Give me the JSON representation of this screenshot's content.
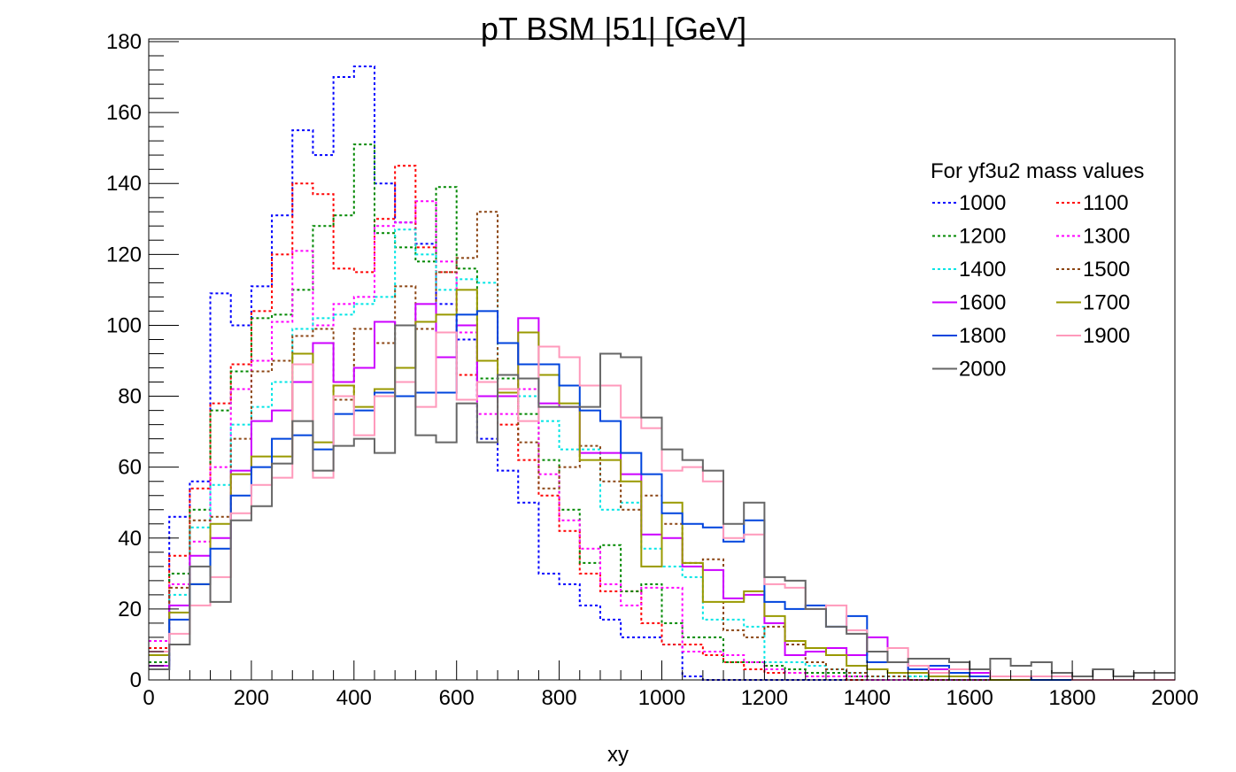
{
  "chart_data": {
    "type": "step-histogram",
    "title": "pT BSM |51| [GeV]",
    "xlabel": "xy",
    "ylabel": "",
    "xlim": [
      0,
      2000
    ],
    "ylim": [
      0,
      180
    ],
    "x_ticks": [
      "0",
      "200",
      "400",
      "600",
      "800",
      "1000",
      "1200",
      "1400",
      "1600",
      "1800",
      "2000"
    ],
    "y_ticks": [
      "0",
      "20",
      "40",
      "60",
      "80",
      "100",
      "120",
      "140",
      "160",
      "180"
    ],
    "bin_width": 40,
    "legend_title": "For yf3u2 mass values",
    "legend_placement": "right",
    "series": [
      {
        "name": "1000",
        "color": "#0000ff",
        "dash": "dotted",
        "values": [
          5,
          46,
          56,
          109,
          100,
          111,
          131,
          155,
          148,
          170,
          173,
          140,
          129,
          123,
          106,
          96,
          68,
          59,
          50,
          30,
          27,
          21,
          17,
          12,
          12,
          10,
          1,
          0,
          0,
          0,
          0,
          0,
          0,
          0,
          0,
          0,
          0,
          0,
          0,
          0,
          0,
          0,
          0,
          0,
          0,
          0,
          0,
          0,
          0,
          0
        ]
      },
      {
        "name": "1100",
        "color": "#ff0000",
        "dash": "dotted",
        "values": [
          9,
          35,
          54,
          78,
          89,
          104,
          120,
          140,
          137,
          116,
          115,
          130,
          145,
          122,
          115,
          86,
          80,
          72,
          62,
          52,
          42,
          30,
          25,
          25,
          16,
          10,
          10,
          7,
          5,
          3,
          2,
          2,
          1,
          1,
          0,
          0,
          0,
          0,
          0,
          0,
          0,
          0,
          0,
          0,
          0,
          0,
          0,
          0,
          0,
          0
        ]
      },
      {
        "name": "1200",
        "color": "#008800",
        "dash": "dotted",
        "values": [
          5,
          30,
          48,
          76,
          87,
          102,
          103,
          110,
          128,
          131,
          151,
          126,
          122,
          118,
          139,
          116,
          85,
          85,
          75,
          62,
          48,
          33,
          38,
          25,
          27,
          16,
          12,
          12,
          5,
          5,
          4,
          3,
          2,
          2,
          1,
          1,
          1,
          1,
          0,
          0,
          0,
          0,
          0,
          0,
          0,
          0,
          0,
          0,
          0,
          0
        ]
      },
      {
        "name": "1300",
        "color": "#ff00ff",
        "dash": "dotted",
        "values": [
          11,
          27,
          39,
          60,
          82,
          90,
          101,
          121,
          100,
          106,
          108,
          128,
          129,
          135,
          118,
          98,
          75,
          75,
          82,
          58,
          45,
          37,
          27,
          21,
          26,
          26,
          8,
          8,
          7,
          5,
          3,
          2,
          1,
          1,
          1,
          0,
          0,
          0,
          0,
          0,
          0,
          0,
          0,
          0,
          0,
          0,
          0,
          0,
          0,
          0
        ]
      },
      {
        "name": "1400",
        "color": "#00e5e5",
        "dash": "dotted",
        "values": [
          4,
          24,
          43,
          55,
          72,
          77,
          84,
          99,
          102,
          103,
          106,
          108,
          127,
          120,
          110,
          113,
          112,
          80,
          80,
          73,
          65,
          65,
          48,
          50,
          37,
          32,
          29,
          17,
          17,
          15,
          5,
          5,
          4,
          3,
          2,
          1,
          1,
          1,
          1,
          0,
          0,
          0,
          0,
          0,
          0,
          0,
          0,
          0,
          0,
          0
        ]
      },
      {
        "name": "1500",
        "color": "#8b4513",
        "dash": "dotted",
        "values": [
          8,
          26,
          45,
          46,
          68,
          87,
          90,
          97,
          99,
          79,
          99,
          95,
          111,
          99,
          115,
          119,
          132,
          80,
          67,
          54,
          60,
          66,
          56,
          48,
          52,
          44,
          33,
          34,
          14,
          12,
          15,
          10,
          5,
          3,
          2,
          1,
          1,
          0,
          0,
          0,
          0,
          0,
          0,
          0,
          0,
          0,
          0,
          0,
          0,
          0
        ]
      },
      {
        "name": "1600",
        "color": "#cc00ff",
        "dash": "solid",
        "values": [
          4,
          21,
          35,
          40,
          59,
          73,
          76,
          84,
          95,
          84,
          88,
          101,
          100,
          106,
          91,
          100,
          80,
          80,
          102,
          78,
          77,
          64,
          64,
          58,
          41,
          40,
          32,
          31,
          23,
          24,
          16,
          7,
          8,
          9,
          7,
          12,
          5,
          3,
          3,
          2,
          2,
          1,
          1,
          0,
          0,
          0,
          0,
          0,
          0,
          0
        ]
      },
      {
        "name": "1700",
        "color": "#999900",
        "dash": "solid",
        "values": [
          7,
          19,
          27,
          44,
          58,
          63,
          63,
          92,
          67,
          83,
          77,
          82,
          88,
          101,
          103,
          110,
          90,
          81,
          98,
          86,
          78,
          62,
          62,
          56,
          32,
          50,
          33,
          22,
          22,
          25,
          18,
          11,
          9,
          7,
          4,
          3,
          2,
          2,
          1,
          1,
          1,
          0,
          0,
          0,
          0,
          0,
          0,
          0,
          0,
          0
        ]
      },
      {
        "name": "1800",
        "color": "#0044dd",
        "dash": "solid",
        "values": [
          3,
          17,
          27,
          37,
          52,
          60,
          68,
          69,
          65,
          75,
          76,
          81,
          80,
          81,
          81,
          103,
          104,
          95,
          89,
          89,
          83,
          76,
          73,
          64,
          58,
          47,
          44,
          43,
          39,
          45,
          22,
          20,
          21,
          15,
          18,
          5,
          5,
          3,
          4,
          2,
          1,
          1,
          1,
          0,
          0,
          0,
          0,
          0,
          0,
          0
        ]
      },
      {
        "name": "1900",
        "color": "#ff99bb",
        "dash": "solid",
        "values": [
          8,
          13,
          21,
          29,
          47,
          55,
          57,
          89,
          57,
          80,
          69,
          80,
          84,
          77,
          98,
          79,
          84,
          82,
          73,
          94,
          91,
          83,
          83,
          74,
          71,
          59,
          60,
          56,
          40,
          41,
          27,
          26,
          20,
          21,
          14,
          8,
          9,
          4,
          2,
          3,
          3,
          1,
          1,
          1,
          1,
          0,
          0,
          0,
          0,
          0
        ]
      },
      {
        "name": "2000",
        "color": "#666666",
        "dash": "solid",
        "values": [
          3,
          10,
          32,
          22,
          45,
          49,
          61,
          73,
          59,
          66,
          68,
          64,
          100,
          69,
          67,
          78,
          67,
          86,
          85,
          77,
          77,
          77,
          92,
          91,
          74,
          65,
          62,
          59,
          44,
          50,
          29,
          28,
          20,
          15,
          13,
          8,
          5,
          6,
          6,
          5,
          3,
          6,
          4,
          5,
          2,
          1,
          3,
          1,
          2,
          2
        ]
      }
    ]
  }
}
